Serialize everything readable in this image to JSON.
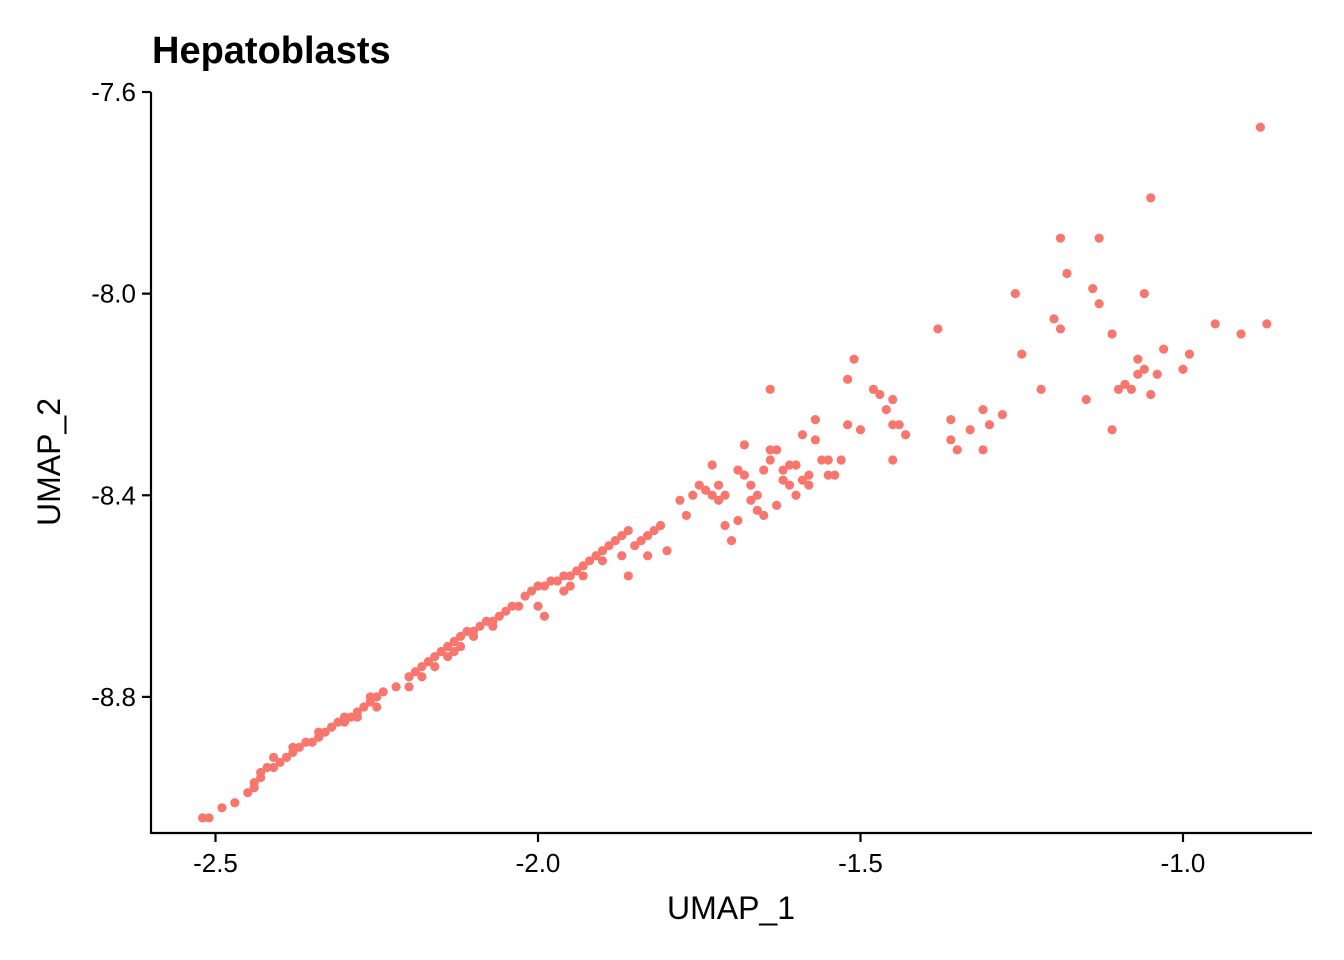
{
  "chart_data": {
    "type": "scatter",
    "title": "Hepatoblasts",
    "xlabel": "UMAP_1",
    "ylabel": "UMAP_2",
    "xlim": [
      -2.6,
      -0.8
    ],
    "ylim": [
      -9.07,
      -7.6
    ],
    "x_ticks": [
      -2.5,
      -2.0,
      -1.5,
      -1.0
    ],
    "x_tick_labels": [
      "-2.5",
      "-2.0",
      "-1.5",
      "-1.0"
    ],
    "y_ticks": [
      -7.6,
      -8.0,
      -8.4,
      -8.8
    ],
    "y_tick_labels": [
      "-7.6",
      "-8.0",
      "-8.4",
      "-8.8"
    ],
    "grid": false,
    "legend": "none",
    "point_color": "#F8766D",
    "points": [
      [
        -2.51,
        -9.04
      ],
      [
        -2.49,
        -9.02
      ],
      [
        -2.47,
        -9.01
      ],
      [
        -2.45,
        -8.99
      ],
      [
        -2.44,
        -8.97
      ],
      [
        -2.43,
        -8.96
      ],
      [
        -2.43,
        -8.95
      ],
      [
        -2.42,
        -8.94
      ],
      [
        -2.41,
        -8.94
      ],
      [
        -2.4,
        -8.93
      ],
      [
        -2.39,
        -8.92
      ],
      [
        -2.38,
        -8.91
      ],
      [
        -2.37,
        -8.9
      ],
      [
        -2.36,
        -8.89
      ],
      [
        -2.35,
        -8.89
      ],
      [
        -2.34,
        -8.88
      ],
      [
        -2.33,
        -8.87
      ],
      [
        -2.32,
        -8.86
      ],
      [
        -2.31,
        -8.85
      ],
      [
        -2.3,
        -8.85
      ],
      [
        -2.29,
        -8.84
      ],
      [
        -2.28,
        -8.83
      ],
      [
        -2.27,
        -8.82
      ],
      [
        -2.26,
        -8.81
      ],
      [
        -2.25,
        -8.8
      ],
      [
        -2.24,
        -8.79
      ],
      [
        -2.25,
        -8.82
      ],
      [
        -2.28,
        -8.84
      ],
      [
        -2.2,
        -8.76
      ],
      [
        -2.19,
        -8.75
      ],
      [
        -2.18,
        -8.74
      ],
      [
        -2.17,
        -8.73
      ],
      [
        -2.16,
        -8.72
      ],
      [
        -2.15,
        -8.71
      ],
      [
        -2.14,
        -8.7
      ],
      [
        -2.13,
        -8.69
      ],
      [
        -2.12,
        -8.68
      ],
      [
        -2.11,
        -8.67
      ],
      [
        -2.1,
        -8.67
      ],
      [
        -2.09,
        -8.66
      ],
      [
        -2.08,
        -8.65
      ],
      [
        -2.07,
        -8.65
      ],
      [
        -2.06,
        -8.64
      ],
      [
        -2.05,
        -8.63
      ],
      [
        -2.04,
        -8.62
      ],
      [
        -2.2,
        -8.78
      ],
      [
        -2.16,
        -8.74
      ],
      [
        -2.13,
        -8.71
      ],
      [
        -2.1,
        -8.68
      ],
      [
        -2.02,
        -8.6
      ],
      [
        -2.01,
        -8.59
      ],
      [
        -2.0,
        -8.58
      ],
      [
        -1.99,
        -8.58
      ],
      [
        -1.98,
        -8.57
      ],
      [
        -1.97,
        -8.57
      ],
      [
        -1.96,
        -8.56
      ],
      [
        -1.95,
        -8.56
      ],
      [
        -1.94,
        -8.55
      ],
      [
        -1.93,
        -8.54
      ],
      [
        -1.92,
        -8.53
      ],
      [
        -2.0,
        -8.62
      ],
      [
        -1.99,
        -8.64
      ],
      [
        -1.95,
        -8.58
      ],
      [
        -1.91,
        -8.52
      ],
      [
        -1.9,
        -8.51
      ],
      [
        -1.89,
        -8.5
      ],
      [
        -1.88,
        -8.49
      ],
      [
        -1.87,
        -8.48
      ],
      [
        -1.86,
        -8.47
      ],
      [
        -1.85,
        -8.5
      ],
      [
        -1.84,
        -8.49
      ],
      [
        -1.83,
        -8.48
      ],
      [
        -1.82,
        -8.47
      ],
      [
        -1.81,
        -8.46
      ],
      [
        -1.86,
        -8.56
      ],
      [
        -1.9,
        -8.53
      ],
      [
        -1.78,
        -8.41
      ],
      [
        -1.77,
        -8.44
      ],
      [
        -1.75,
        -8.38
      ],
      [
        -1.74,
        -8.39
      ],
      [
        -1.73,
        -8.4
      ],
      [
        -1.72,
        -8.41
      ],
      [
        -1.71,
        -8.4
      ],
      [
        -1.7,
        -8.49
      ],
      [
        -1.69,
        -8.35
      ],
      [
        -1.68,
        -8.36
      ],
      [
        -1.67,
        -8.38
      ],
      [
        -1.66,
        -8.4
      ],
      [
        -1.65,
        -8.44
      ],
      [
        -1.64,
        -8.33
      ],
      [
        -1.63,
        -8.31
      ],
      [
        -1.62,
        -8.37
      ],
      [
        -1.61,
        -8.34
      ],
      [
        -1.6,
        -8.34
      ],
      [
        -1.59,
        -8.37
      ],
      [
        -1.58,
        -8.36
      ],
      [
        -1.57,
        -8.29
      ],
      [
        -1.56,
        -8.33
      ],
      [
        -1.55,
        -8.36
      ],
      [
        -1.54,
        -8.36
      ],
      [
        -1.53,
        -8.33
      ],
      [
        -1.52,
        -8.26
      ],
      [
        -1.51,
        -8.13
      ],
      [
        -1.5,
        -8.27
      ],
      [
        -1.64,
        -8.19
      ],
      [
        -1.63,
        -8.42
      ],
      [
        -1.66,
        -8.43
      ],
      [
        -1.71,
        -8.46
      ],
      [
        -1.57,
        -8.25
      ],
      [
        -1.6,
        -8.4
      ],
      [
        -1.48,
        -8.19
      ],
      [
        -1.47,
        -8.2
      ],
      [
        -1.46,
        -8.23
      ],
      [
        -1.45,
        -8.21
      ],
      [
        -1.45,
        -8.26
      ],
      [
        -1.44,
        -8.26
      ],
      [
        -1.43,
        -8.28
      ],
      [
        -1.45,
        -8.33
      ],
      [
        -1.52,
        -8.17
      ],
      [
        -1.64,
        -8.31
      ],
      [
        -1.38,
        -8.07
      ],
      [
        -1.36,
        -8.25
      ],
      [
        -1.36,
        -8.29
      ],
      [
        -1.35,
        -8.31
      ],
      [
        -1.33,
        -8.27
      ],
      [
        -1.31,
        -8.23
      ],
      [
        -1.31,
        -8.31
      ],
      [
        -1.3,
        -8.26
      ],
      [
        -1.28,
        -8.24
      ],
      [
        -1.26,
        -8.0
      ],
      [
        -1.25,
        -8.12
      ],
      [
        -1.22,
        -8.19
      ],
      [
        -1.2,
        -8.05
      ],
      [
        -1.19,
        -7.89
      ],
      [
        -1.19,
        -8.07
      ],
      [
        -1.18,
        -7.96
      ],
      [
        -1.14,
        -7.99
      ],
      [
        -1.13,
        -7.89
      ],
      [
        -1.13,
        -8.02
      ],
      [
        -1.15,
        -8.21
      ],
      [
        -1.11,
        -8.08
      ],
      [
        -1.1,
        -8.19
      ],
      [
        -1.11,
        -8.27
      ],
      [
        -1.08,
        -8.19
      ],
      [
        -1.07,
        -8.13
      ],
      [
        -1.06,
        -8.15
      ],
      [
        -1.06,
        -8.0
      ],
      [
        -1.05,
        -7.81
      ],
      [
        -1.05,
        -8.2
      ],
      [
        -1.04,
        -8.16
      ],
      [
        -1.03,
        -8.11
      ],
      [
        -1.0,
        -8.15
      ],
      [
        -0.99,
        -8.12
      ],
      [
        -0.95,
        -8.06
      ],
      [
        -0.91,
        -8.08
      ],
      [
        -0.88,
        -7.67
      ],
      [
        -0.87,
        -8.06
      ],
      [
        -1.07,
        -8.16
      ],
      [
        -1.09,
        -8.18
      ],
      [
        -1.72,
        -8.38
      ],
      [
        -1.76,
        -8.4
      ],
      [
        -1.8,
        -8.51
      ],
      [
        -1.83,
        -8.52
      ],
      [
        -1.87,
        -8.52
      ],
      [
        -1.93,
        -8.56
      ],
      [
        -1.96,
        -8.59
      ],
      [
        -2.03,
        -8.62
      ],
      [
        -2.07,
        -8.66
      ],
      [
        -2.12,
        -8.7
      ],
      [
        -2.14,
        -8.72
      ],
      [
        -2.18,
        -8.76
      ],
      [
        -2.22,
        -8.78
      ],
      [
        -2.26,
        -8.8
      ],
      [
        -2.3,
        -8.84
      ],
      [
        -2.34,
        -8.87
      ],
      [
        -2.38,
        -8.9
      ],
      [
        -2.41,
        -8.92
      ],
      [
        -2.44,
        -8.98
      ],
      [
        -2.52,
        -9.04
      ],
      [
        -1.69,
        -8.45
      ],
      [
        -1.65,
        -8.35
      ],
      [
        -1.61,
        -8.38
      ],
      [
        -1.55,
        -8.33
      ],
      [
        -1.68,
        -8.3
      ],
      [
        -1.73,
        -8.34
      ],
      [
        -1.59,
        -8.28
      ],
      [
        -1.62,
        -8.35
      ],
      [
        -1.58,
        -8.38
      ],
      [
        -1.67,
        -8.41
      ]
    ]
  }
}
